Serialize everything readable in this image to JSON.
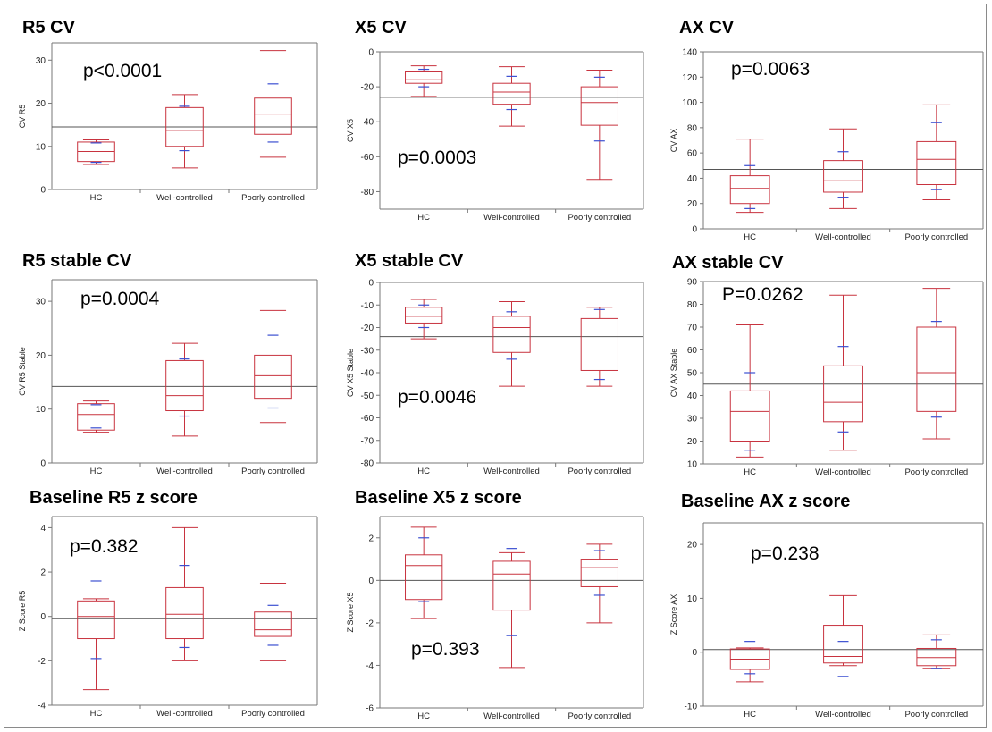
{
  "chart_data": [
    {
      "type": "box",
      "title": "R5 CV",
      "ylabel": "CV R5",
      "p_value": "p<0.0001",
      "ylim": [
        0,
        34
      ],
      "yticks": [
        0,
        10,
        20,
        30
      ],
      "mean_line": 14.5,
      "categories": [
        "HC",
        "Well-controlled",
        "Poorly controlled"
      ],
      "boxes": [
        {
          "min": 5.8,
          "q1": 6.5,
          "median": 8.8,
          "q3": 11,
          "max": 11.5,
          "ci": [
            6.3,
            10.8
          ]
        },
        {
          "min": 5,
          "q1": 10,
          "median": 13.7,
          "q3": 19,
          "max": 22,
          "ci": [
            9,
            19.3
          ]
        },
        {
          "min": 7.5,
          "q1": 12.8,
          "median": 17.5,
          "q3": 21.2,
          "max": 32.2,
          "ci": [
            11,
            24.5
          ]
        }
      ]
    },
    {
      "type": "box",
      "title": "X5 CV",
      "ylabel": "CV X5",
      "p_value": "p=0.0003",
      "ylim": [
        -90,
        0
      ],
      "yticks": [
        -80,
        -60,
        -40,
        -20,
        0
      ],
      "mean_line": -26,
      "categories": [
        "HC",
        "Well-controlled",
        "Poorly controlled"
      ],
      "boxes": [
        {
          "min": -25.5,
          "q1": -18,
          "median": -16,
          "q3": -11,
          "max": -8,
          "ci": [
            -20,
            -10
          ]
        },
        {
          "min": -42.5,
          "q1": -30,
          "median": -23,
          "q3": -18,
          "max": -8.5,
          "ci": [
            -33,
            -14
          ]
        },
        {
          "min": -73,
          "q1": -42,
          "median": -29,
          "q3": -20,
          "max": -10.5,
          "ci": [
            -51,
            -14.5
          ]
        }
      ]
    },
    {
      "type": "box",
      "title": "AX CV",
      "ylabel": "CV AX",
      "p_value": "p=0.0063",
      "ylim": [
        0,
        140
      ],
      "yticks": [
        0,
        20,
        40,
        60,
        80,
        100,
        120,
        140
      ],
      "mean_line": 47,
      "categories": [
        "HC",
        "Well-controlled",
        "Poorly controlled"
      ],
      "boxes": [
        {
          "min": 13,
          "q1": 20,
          "median": 32,
          "q3": 42,
          "max": 71,
          "ci": [
            16,
            50
          ]
        },
        {
          "min": 16,
          "q1": 29,
          "median": 38,
          "q3": 54,
          "max": 79,
          "ci": [
            25,
            61
          ]
        },
        {
          "min": 23,
          "q1": 35,
          "median": 55,
          "q3": 69,
          "max": 98,
          "ci": [
            31,
            84
          ]
        }
      ]
    },
    {
      "type": "box",
      "title": "R5 stable CV",
      "ylabel": "CV R5 Stable",
      "p_value": "p=0.0004",
      "ylim": [
        0,
        34
      ],
      "yticks": [
        0,
        10,
        20,
        30
      ],
      "mean_line": 14.2,
      "categories": [
        "HC",
        "Well-controlled",
        "Poorly controlled"
      ],
      "boxes": [
        {
          "min": 5.7,
          "q1": 6.1,
          "median": 9,
          "q3": 11,
          "max": 11.5,
          "ci": [
            6.5,
            10.8
          ]
        },
        {
          "min": 5,
          "q1": 9.7,
          "median": 12.5,
          "q3": 19,
          "max": 22.2,
          "ci": [
            8.7,
            19.3
          ]
        },
        {
          "min": 7.5,
          "q1": 12,
          "median": 16.2,
          "q3": 20,
          "max": 28.3,
          "ci": [
            10.2,
            23.7
          ]
        }
      ]
    },
    {
      "type": "box",
      "title": "X5 stable CV",
      "ylabel": "CV X5 Stable",
      "p_value": "p=0.0046",
      "ylim": [
        -80,
        0
      ],
      "yticks": [
        -80,
        -70,
        -60,
        -50,
        -40,
        -30,
        -20,
        -10,
        0
      ],
      "mean_line": -24,
      "categories": [
        "HC",
        "Well-controlled",
        "Poorly controlled"
      ],
      "boxes": [
        {
          "min": -25,
          "q1": -18,
          "median": -15,
          "q3": -11,
          "max": -7.5,
          "ci": [
            -20,
            -10
          ]
        },
        {
          "min": -46,
          "q1": -31,
          "median": -20,
          "q3": -15,
          "max": -8.5,
          "ci": [
            -34,
            -13
          ]
        },
        {
          "min": -46,
          "q1": -39,
          "median": -22,
          "q3": -16,
          "max": -11,
          "ci": [
            -43,
            -12
          ]
        }
      ]
    },
    {
      "type": "box",
      "title": "AX stable CV",
      "ylabel": "CV AX Stable",
      "p_value": "P=0.0262",
      "ylim": [
        10,
        90
      ],
      "yticks": [
        10,
        20,
        30,
        40,
        50,
        60,
        70,
        80,
        90
      ],
      "mean_line": 45,
      "categories": [
        "HC",
        "Well-controlled",
        "Poorly controlled"
      ],
      "boxes": [
        {
          "min": 13,
          "q1": 20,
          "median": 33,
          "q3": 42,
          "max": 71,
          "ci": [
            16,
            50
          ]
        },
        {
          "min": 16,
          "q1": 28.5,
          "median": 37,
          "q3": 53,
          "max": 84,
          "ci": [
            24,
            61.5
          ]
        },
        {
          "min": 21,
          "q1": 33,
          "median": 50,
          "q3": 70,
          "max": 87,
          "ci": [
            30.5,
            72.5
          ]
        }
      ]
    },
    {
      "type": "box",
      "title": "Baseline R5 z score",
      "ylabel": "Z Score R5",
      "p_value": "p=0.382",
      "ylim": [
        -4,
        4.5
      ],
      "yticks": [
        -4,
        -2,
        0,
        2,
        4
      ],
      "mean_line": -0.1,
      "categories": [
        "HC",
        "Well-controlled",
        "Poorly controlled"
      ],
      "boxes": [
        {
          "min": -3.3,
          "q1": -1,
          "median": 0,
          "q3": 0.7,
          "max": 0.8,
          "ci": [
            -1.9,
            1.6
          ]
        },
        {
          "min": -2,
          "q1": -1,
          "median": 0.1,
          "q3": 1.3,
          "max": 4,
          "ci": [
            -1.4,
            2.3
          ]
        },
        {
          "min": -2,
          "q1": -0.9,
          "median": -0.6,
          "q3": 0.2,
          "max": 1.5,
          "ci": [
            -1.3,
            0.5
          ]
        }
      ]
    },
    {
      "type": "box",
      "title": "Baseline X5 z score",
      "ylabel": "Z Score X5",
      "p_value": "p=0.393",
      "ylim": [
        -6,
        3
      ],
      "yticks": [
        -6,
        -4,
        -2,
        0,
        2
      ],
      "mean_line": 0,
      "categories": [
        "HC",
        "Well-controlled",
        "Poorly controlled"
      ],
      "boxes": [
        {
          "min": -1.8,
          "q1": -0.9,
          "median": 0.7,
          "q3": 1.2,
          "max": 2.5,
          "ci": [
            -1,
            2
          ]
        },
        {
          "min": -4.1,
          "q1": -1.4,
          "median": 0.3,
          "q3": 0.9,
          "max": 1.3,
          "ci": [
            -2.6,
            1.5
          ]
        },
        {
          "min": -2,
          "q1": -0.3,
          "median": 0.6,
          "q3": 1,
          "max": 1.7,
          "ci": [
            -0.7,
            1.4
          ]
        }
      ]
    },
    {
      "type": "box",
      "title": "Baseline AX z score",
      "ylabel": "Z Score AX",
      "p_value": "p=0.238",
      "ylim": [
        -10,
        24
      ],
      "yticks": [
        -10,
        0,
        10,
        20
      ],
      "mean_line": 0.5,
      "categories": [
        "HC",
        "Well-controlled",
        "Poorly controlled"
      ],
      "boxes": [
        {
          "min": -5.5,
          "q1": -3.2,
          "median": -1.3,
          "q3": 0.6,
          "max": 0.8,
          "ci": [
            -4,
            2
          ]
        },
        {
          "min": -2.5,
          "q1": -2,
          "median": -0.8,
          "q3": 5,
          "max": 10.5,
          "ci": [
            -4.5,
            2
          ]
        },
        {
          "min": -3,
          "q1": -2.5,
          "median": -1,
          "q3": 0.7,
          "max": 3.2,
          "ci": [
            -3,
            2.3
          ]
        }
      ]
    }
  ],
  "colors": {
    "box": "#c8333f",
    "ci": "#3b4fd1",
    "mean_line": "#555555",
    "axis": "#777777"
  }
}
